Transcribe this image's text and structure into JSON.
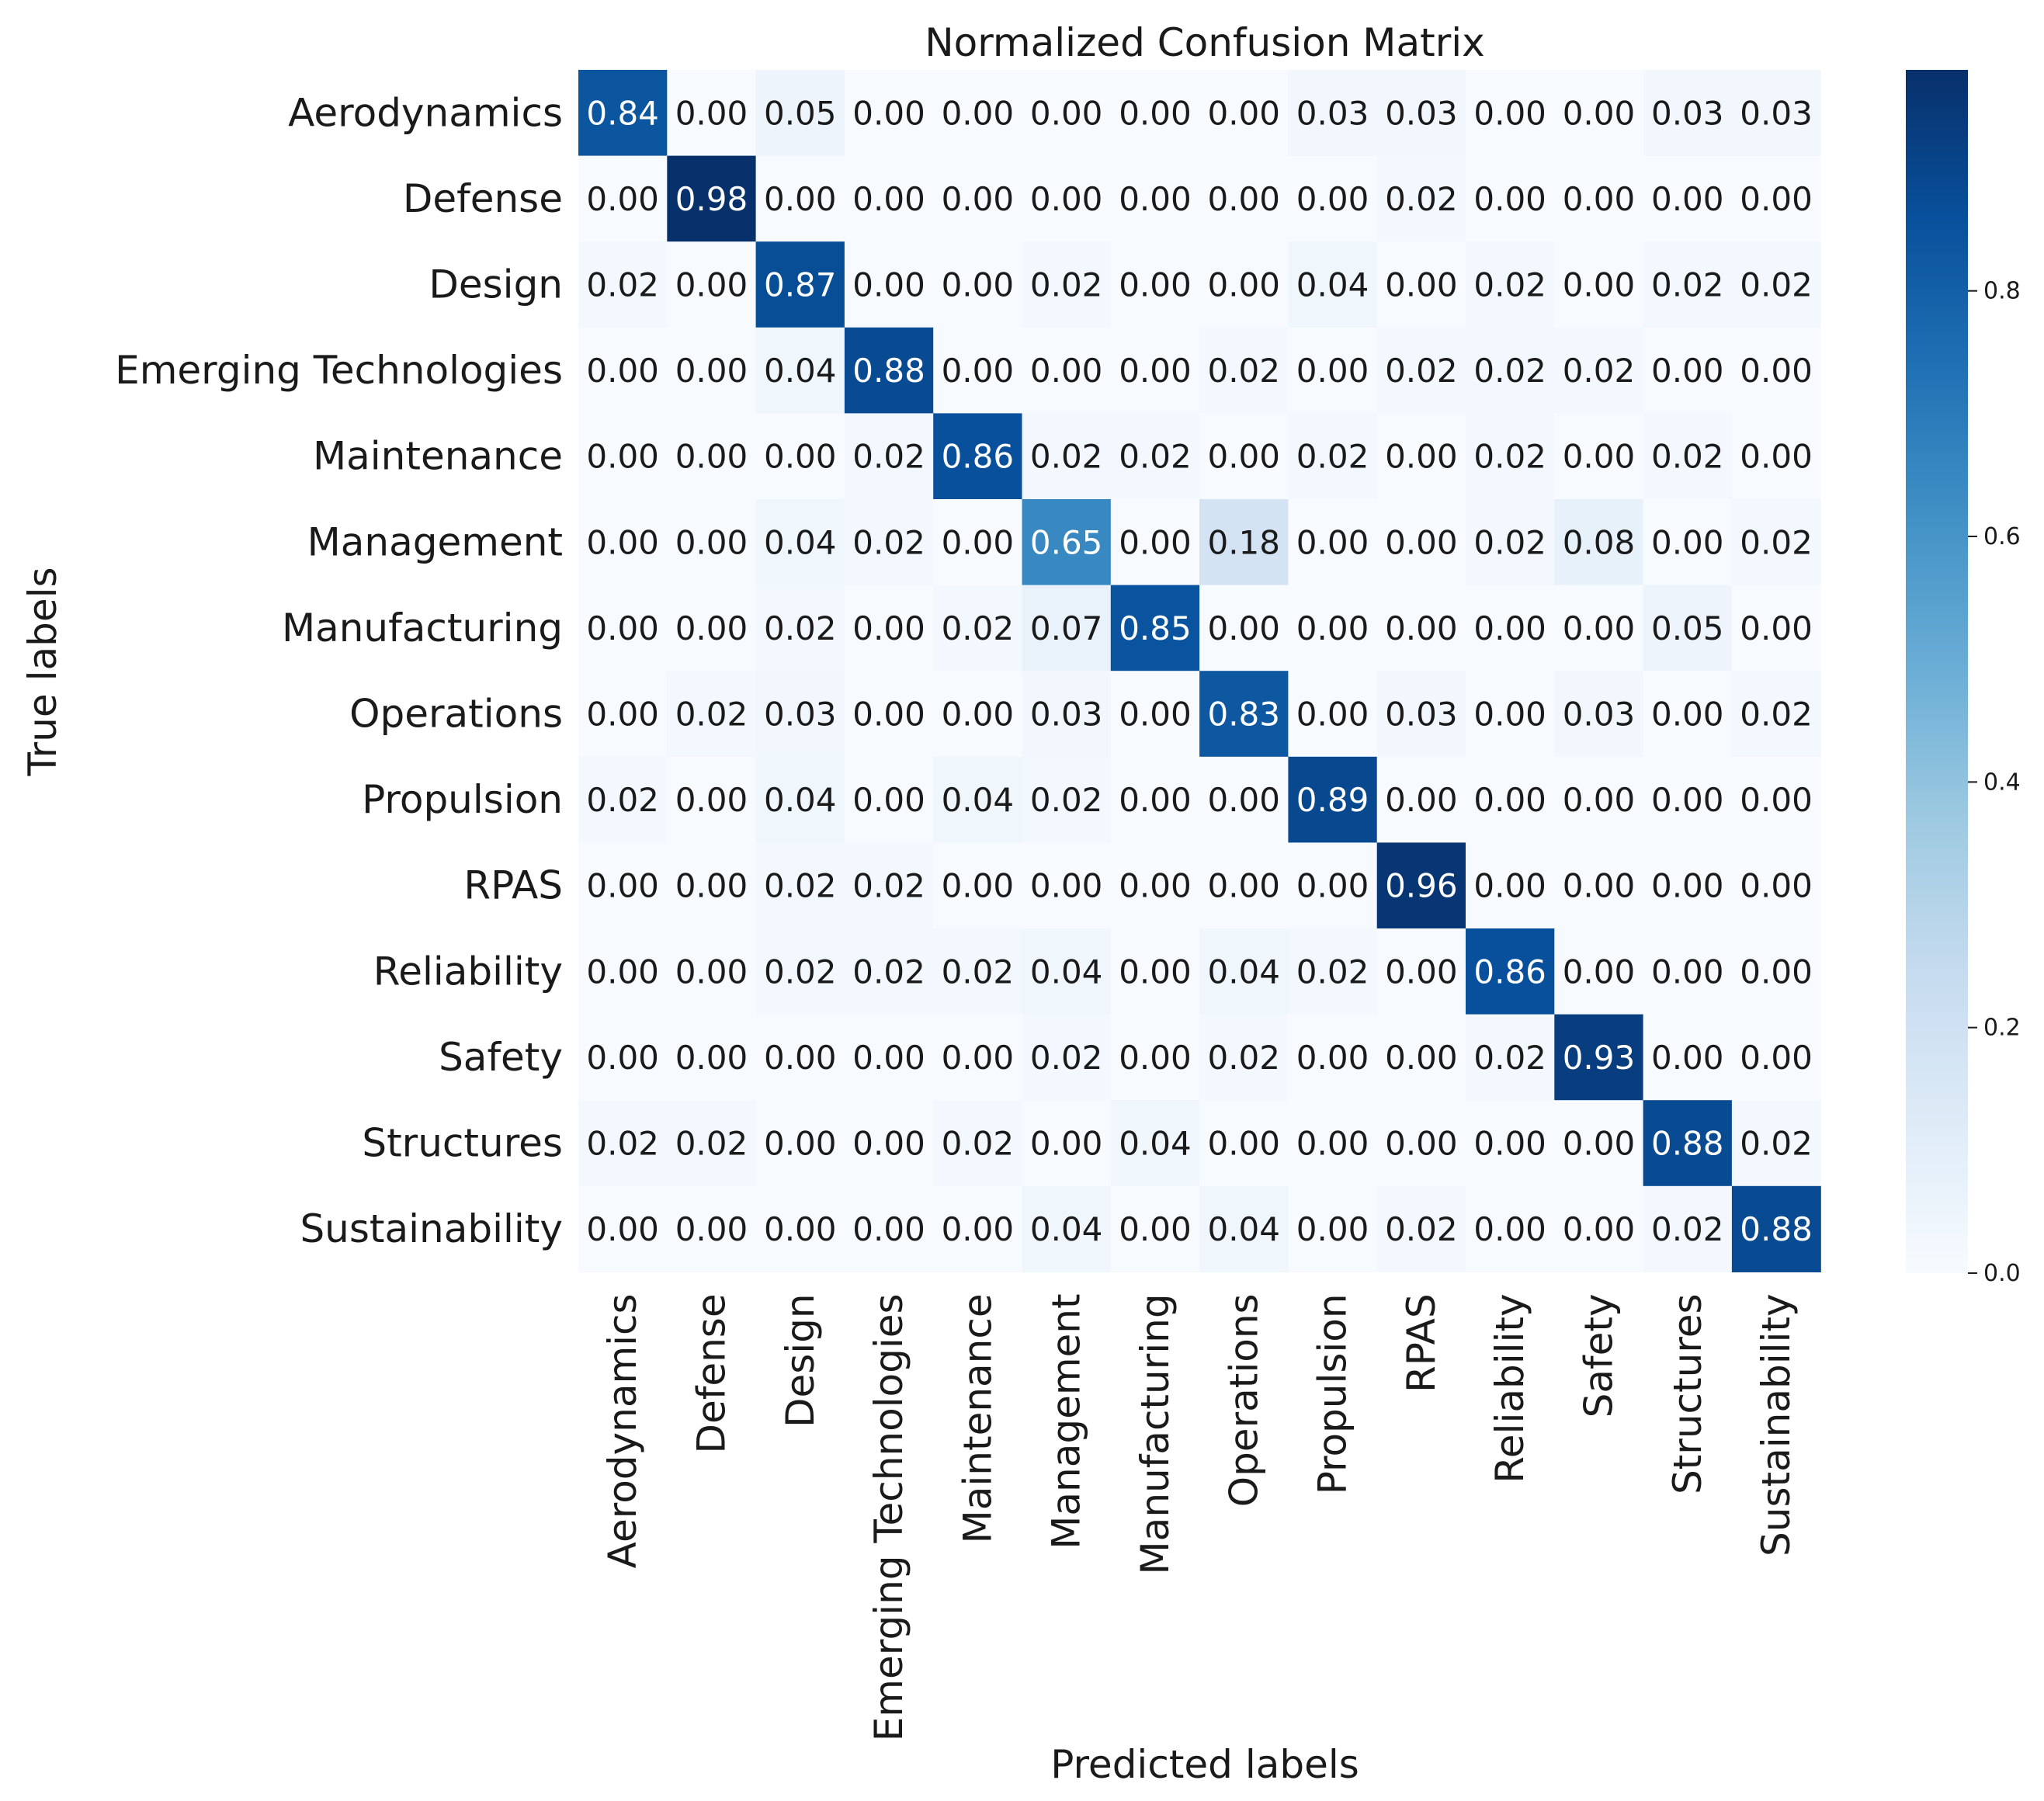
{
  "chart_data": {
    "type": "heatmap",
    "title": "Normalized Confusion Matrix",
    "xlabel": "Predicted labels",
    "ylabel": "True labels",
    "labels": [
      "Aerodynamics",
      "Defense",
      "Design",
      "Emerging Technologies",
      "Maintenance",
      "Management",
      "Manufacturing",
      "Operations",
      "Propulsion",
      "RPAS",
      "Reliability",
      "Safety",
      "Structures",
      "Sustainability"
    ],
    "matrix": [
      [
        0.84,
        0.0,
        0.05,
        0.0,
        0.0,
        0.0,
        0.0,
        0.0,
        0.03,
        0.03,
        0.0,
        0.0,
        0.03,
        0.03
      ],
      [
        0.0,
        0.98,
        0.0,
        0.0,
        0.0,
        0.0,
        0.0,
        0.0,
        0.0,
        0.02,
        0.0,
        0.0,
        0.0,
        0.0
      ],
      [
        0.02,
        0.0,
        0.87,
        0.0,
        0.0,
        0.02,
        0.0,
        0.0,
        0.04,
        0.0,
        0.02,
        0.0,
        0.02,
        0.02
      ],
      [
        0.0,
        0.0,
        0.04,
        0.88,
        0.0,
        0.0,
        0.0,
        0.02,
        0.0,
        0.02,
        0.02,
        0.02,
        0.0,
        0.0
      ],
      [
        0.0,
        0.0,
        0.0,
        0.02,
        0.86,
        0.02,
        0.02,
        0.0,
        0.02,
        0.0,
        0.02,
        0.0,
        0.02,
        0.0
      ],
      [
        0.0,
        0.0,
        0.04,
        0.02,
        0.0,
        0.65,
        0.0,
        0.18,
        0.0,
        0.0,
        0.02,
        0.08,
        0.0,
        0.02
      ],
      [
        0.0,
        0.0,
        0.02,
        0.0,
        0.02,
        0.07,
        0.85,
        0.0,
        0.0,
        0.0,
        0.0,
        0.0,
        0.05,
        0.0
      ],
      [
        0.0,
        0.02,
        0.03,
        0.0,
        0.0,
        0.03,
        0.0,
        0.83,
        0.0,
        0.03,
        0.0,
        0.03,
        0.0,
        0.02
      ],
      [
        0.02,
        0.0,
        0.04,
        0.0,
        0.04,
        0.02,
        0.0,
        0.0,
        0.89,
        0.0,
        0.0,
        0.0,
        0.0,
        0.0
      ],
      [
        0.0,
        0.0,
        0.02,
        0.02,
        0.0,
        0.0,
        0.0,
        0.0,
        0.0,
        0.96,
        0.0,
        0.0,
        0.0,
        0.0
      ],
      [
        0.0,
        0.0,
        0.02,
        0.02,
        0.02,
        0.04,
        0.0,
        0.04,
        0.02,
        0.0,
        0.86,
        0.0,
        0.0,
        0.0
      ],
      [
        0.0,
        0.0,
        0.0,
        0.0,
        0.0,
        0.02,
        0.0,
        0.02,
        0.0,
        0.0,
        0.02,
        0.93,
        0.0,
        0.0
      ],
      [
        0.02,
        0.02,
        0.0,
        0.0,
        0.02,
        0.0,
        0.04,
        0.0,
        0.0,
        0.0,
        0.0,
        0.0,
        0.88,
        0.02
      ],
      [
        0.0,
        0.0,
        0.0,
        0.0,
        0.0,
        0.04,
        0.0,
        0.04,
        0.0,
        0.02,
        0.0,
        0.0,
        0.02,
        0.88
      ]
    ],
    "value_format": "0.00",
    "colormap": "Blues",
    "colorbar": {
      "range": [
        0.0,
        0.98
      ],
      "ticks": [
        0.0,
        0.2,
        0.4,
        0.6,
        0.8
      ],
      "tick_labels": [
        "0.0",
        "0.2",
        "0.4",
        "0.6",
        "0.8"
      ]
    },
    "colors": {
      "low": "#f7fbff",
      "high": "#08306b",
      "text_dark": "#1a1a1a",
      "text_light": "#ffffff"
    }
  }
}
